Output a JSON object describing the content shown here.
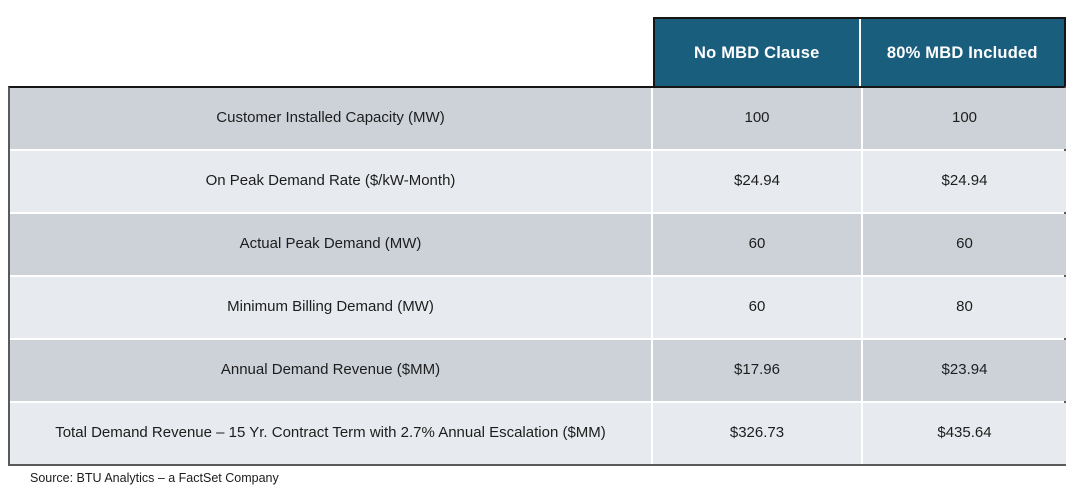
{
  "theme": {
    "header_bg": "#1A5E7D",
    "header_text": "#FFFFFF",
    "row_dark_bg": "#CDD2D9",
    "row_light_bg": "#E7EAEE",
    "divider": "#FFFFFF",
    "border_dark": "#151515",
    "border_gray": "#5A5A5A"
  },
  "chart_data": {
    "type": "table",
    "title": "",
    "columns": [
      "",
      "No MBD Clause",
      "80% MBD Included"
    ],
    "rows": [
      [
        "Customer Installed Capacity (MW)",
        "100",
        "100"
      ],
      [
        "On Peak Demand Rate ($/kW-Month)",
        "$24.94",
        "$24.94"
      ],
      [
        "Actual Peak Demand (MW)",
        "60",
        "60"
      ],
      [
        "Minimum Billing Demand (MW)",
        "60",
        "80"
      ],
      [
        "Annual Demand Revenue ($MM)",
        "$17.96",
        "$23.94"
      ],
      [
        "Total Demand Revenue – 15 Yr. Contract Term with 2.7% Annual Escalation ($MM)",
        "$326.73",
        "$435.64"
      ]
    ],
    "numeric_rows": [
      {
        "label": "Customer Installed Capacity (MW)",
        "no_mbd_clause": 100,
        "mbd_80_included": 100
      },
      {
        "label": "On Peak Demand Rate ($/kW-Month)",
        "no_mbd_clause": 24.94,
        "mbd_80_included": 24.94
      },
      {
        "label": "Actual Peak Demand (MW)",
        "no_mbd_clause": 60,
        "mbd_80_included": 60
      },
      {
        "label": "Minimum Billing Demand (MW)",
        "no_mbd_clause": 60,
        "mbd_80_included": 80
      },
      {
        "label": "Annual Demand Revenue ($MM)",
        "no_mbd_clause": 17.96,
        "mbd_80_included": 23.94
      },
      {
        "label": "Total Demand Revenue – 15 Yr. Contract Term with 2.7% Annual Escalation ($MM)",
        "no_mbd_clause": 326.73,
        "mbd_80_included": 435.64
      }
    ],
    "layout_hints": {
      "row_striping": [
        "dark",
        "light",
        "dark",
        "light",
        "dark",
        "light"
      ],
      "header_spans_value_columns_only": true
    }
  },
  "source_note": "Source: BTU Analytics – a FactSet Company"
}
